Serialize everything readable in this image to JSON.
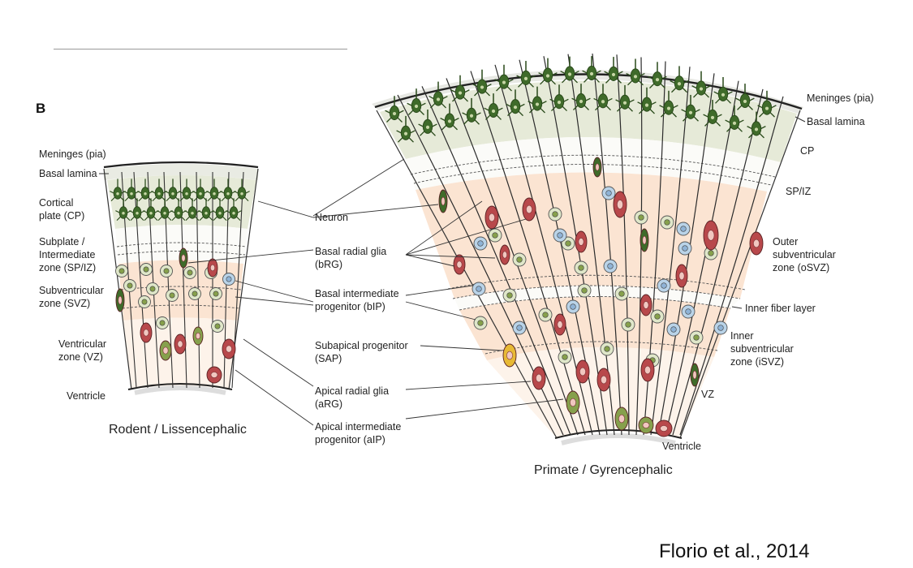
{
  "panel_label": "B",
  "citation": "Florio et al., 2014",
  "colors": {
    "neuron": "#3f6b2a",
    "neuron_dark": "#2b4b1c",
    "cp_band": "#e6ead8",
    "svz_band": "#fbe4d2",
    "vz_band": "#fdf1e6",
    "radial_glia": "#b8484b",
    "intermediate_progenitor": "#86a04c",
    "basal_ip": "#b9d3e8",
    "subapical": "#e7b935",
    "meninges": "#e7e8e3"
  },
  "rodent": {
    "title": "Rodent / Lissencephalic",
    "labels": {
      "meninges": "Meninges (pia)",
      "basal_lamina": "Basal lamina",
      "cp_1": "Cortical",
      "cp_2": "plate (CP)",
      "spiz_1": "Subplate /",
      "spiz_2": "Intermediate",
      "spiz_3": "zone (SP/IZ)",
      "svz_1": "Subventricular",
      "svz_2": "zone (SVZ)",
      "vz_1": "Ventricular",
      "vz_2": "zone (VZ)",
      "ventricle": "Ventricle"
    }
  },
  "legend": {
    "neuron": "Neuron",
    "brg_1": "Basal radial glia",
    "brg_2": "(bRG)",
    "bip_1": "Basal intermediate",
    "bip_2": "progenitor (bIP)",
    "sap_1": "Subapical progenitor",
    "sap_2": "(SAP)",
    "arg_1": "Apical radial glia",
    "arg_2": "(aRG)",
    "aip_1": "Apical intermediate",
    "aip_2": "progenitor (aIP)"
  },
  "primate": {
    "title": "Primate / Gyrencephalic",
    "labels": {
      "meninges": "Meninges (pia)",
      "basal_lamina": "Basal lamina",
      "cp": "CP",
      "spiz": "SP/IZ",
      "osvz_1": "Outer",
      "osvz_2": "subventricular",
      "osvz_3": "zone (oSVZ)",
      "ifl": "Inner fiber layer",
      "isvz_1": "Inner",
      "isvz_2": "subventricular",
      "isvz_3": "zone (iSVZ)",
      "vz": "VZ",
      "ventricle": "Ventricle"
    }
  }
}
